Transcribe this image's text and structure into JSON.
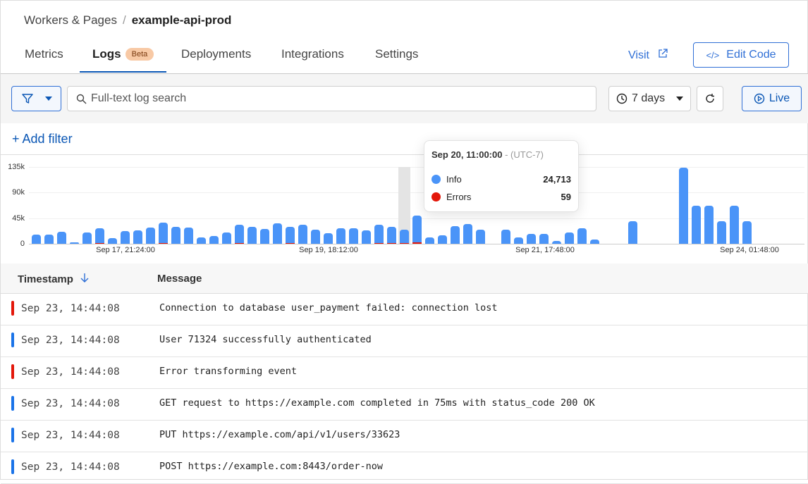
{
  "breadcrumb": {
    "parent": "Workers & Pages",
    "current": "example-api-prod"
  },
  "tabs": [
    {
      "label": "Metrics"
    },
    {
      "label": "Logs",
      "badge": "Beta",
      "active": true
    },
    {
      "label": "Deployments"
    },
    {
      "label": "Integrations"
    },
    {
      "label": "Settings"
    }
  ],
  "header": {
    "visit_label": "Visit",
    "edit_code_label": "Edit Code"
  },
  "toolbar": {
    "search_placeholder": "Full-text log search",
    "search_value": "",
    "time_range": "7 days",
    "live_label": "Live",
    "add_filter_label": "Add filter"
  },
  "colors": {
    "accent": "#0b57b5",
    "info": "#4a94f8",
    "errors": "#e3170a"
  },
  "chart_data": {
    "type": "bar",
    "ylim": [
      0,
      135000
    ],
    "y_ticks": [
      "0",
      "45k",
      "90k",
      "135k"
    ],
    "x_tick_labels": [
      "Sep 17, 21:24:00",
      "Sep 19, 18:12:00",
      "Sep 21, 17:48:00",
      "Sep 24, 01:48:00"
    ],
    "series": [
      {
        "name": "Info",
        "values": [
          16000,
          16000,
          21000,
          2000,
          20000,
          27000,
          10000,
          22000,
          24000,
          28000,
          37000,
          30000,
          28000,
          11000,
          14000,
          20000,
          33000,
          30000,
          26000,
          36000,
          30000,
          33000,
          25000,
          19000,
          27000,
          27000,
          24000,
          33000,
          30000,
          24713,
          50000,
          11000,
          15000,
          31000,
          35000,
          25000,
          0,
          25000,
          11000,
          17000,
          17000,
          5000,
          20000,
          27000,
          7000,
          0,
          0,
          40000,
          0,
          0,
          0,
          134000,
          67000,
          67000,
          40000,
          67000,
          40000
        ]
      },
      {
        "name": "Errors",
        "values": [
          0,
          0,
          0,
          0,
          0,
          400,
          0,
          0,
          0,
          0,
          300,
          0,
          0,
          0,
          0,
          0,
          300,
          0,
          0,
          0,
          300,
          0,
          0,
          0,
          0,
          0,
          0,
          300,
          300,
          59,
          2000,
          0,
          0,
          0,
          0,
          0,
          0,
          0,
          0,
          0,
          0,
          0,
          0,
          0,
          0,
          0,
          0,
          0,
          0,
          0,
          0,
          0,
          0,
          0,
          0,
          0,
          0
        ]
      }
    ],
    "highlight_index": 29,
    "grid": true
  },
  "tooltip": {
    "time": "Sep 20, 11:00:00",
    "tz": "- (UTC-7)",
    "rows": [
      {
        "label": "Info",
        "value": "24,713"
      },
      {
        "label": "Errors",
        "value": "59"
      }
    ]
  },
  "table": {
    "headers": {
      "timestamp": "Timestamp",
      "message": "Message"
    },
    "rows": [
      {
        "level": "error",
        "timestamp": "Sep 23, 14:44:08",
        "message": "Connection to database user_payment failed: connection lost"
      },
      {
        "level": "info",
        "timestamp": "Sep 23, 14:44:08",
        "message": "User 71324 successfully authenticated"
      },
      {
        "level": "error",
        "timestamp": "Sep 23, 14:44:08",
        "message": "Error transforming event"
      },
      {
        "level": "info",
        "timestamp": "Sep 23, 14:44:08",
        "message": "GET request to https://example.com completed in 75ms with status_code 200 OK"
      },
      {
        "level": "info",
        "timestamp": "Sep 23, 14:44:08",
        "message": "PUT https://example.com/api/v1/users/33623"
      },
      {
        "level": "info",
        "timestamp": "Sep 23, 14:44:08",
        "message": "POST https://example.com:8443/order-now"
      }
    ]
  }
}
